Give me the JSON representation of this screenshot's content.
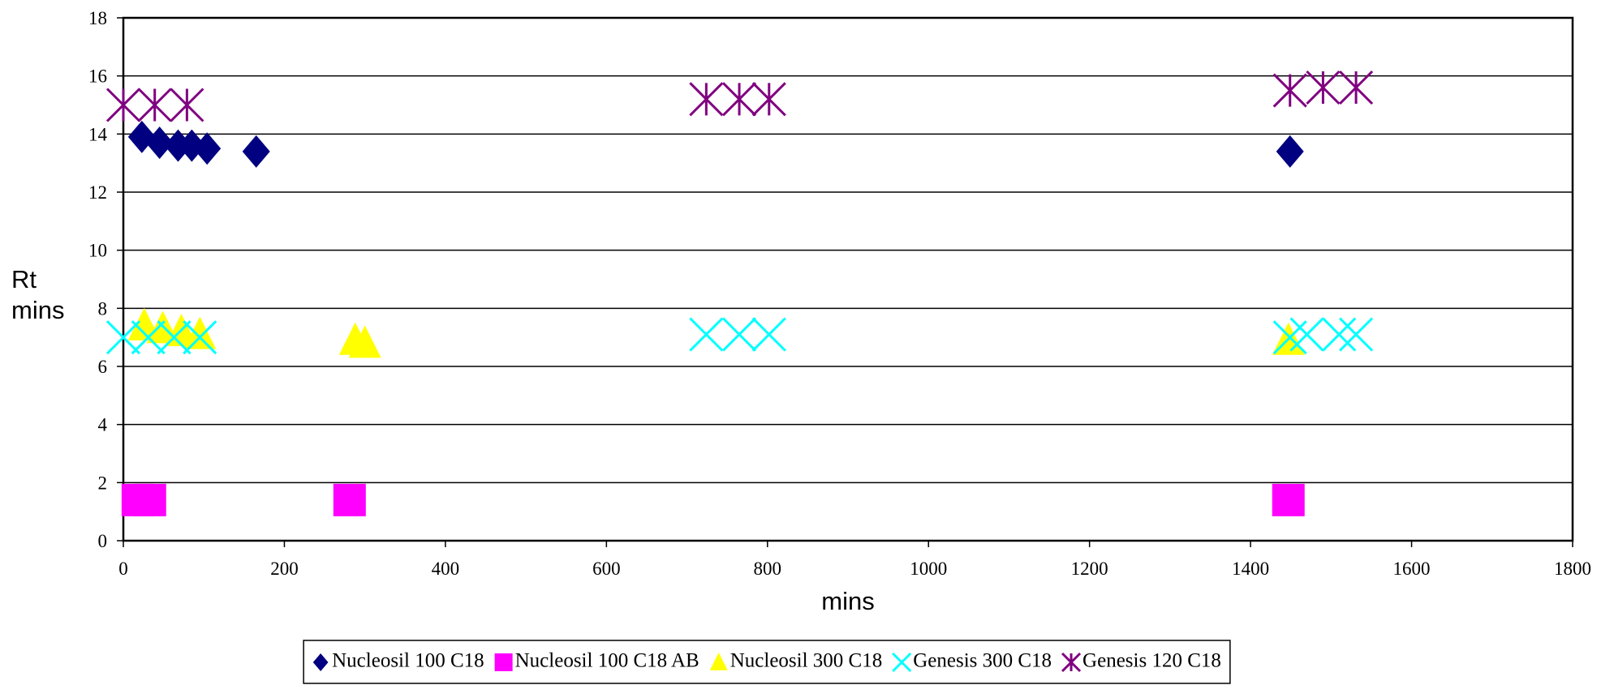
{
  "chart_data": {
    "type": "scatter",
    "xlabel": "mins",
    "ylabel_lines": [
      "Rt",
      "mins"
    ],
    "xlim": [
      0,
      1800
    ],
    "xticks": [
      0,
      200,
      400,
      600,
      800,
      1000,
      1200,
      1400,
      1600,
      1800
    ],
    "ylim": [
      0,
      18
    ],
    "yticks": [
      0,
      2,
      4,
      6,
      8,
      10,
      12,
      14,
      16,
      18
    ],
    "grid": true,
    "legend": "bottom",
    "series": [
      {
        "name": "Nucleosil 100 C18",
        "color": "#000080",
        "marker": "diamond",
        "x": [
          23,
          45,
          68,
          85,
          104,
          165,
          1449
        ],
        "values": [
          13.9,
          13.7,
          13.6,
          13.6,
          13.5,
          13.4,
          13.4
        ]
      },
      {
        "name": "Nucleosil 100 C18 AB",
        "color": "#ff00ff",
        "marker": "square",
        "x": [
          18,
          33,
          281,
          1447
        ],
        "values": [
          1.4,
          1.4,
          1.4,
          1.4
        ]
      },
      {
        "name": "Nucleosil 300 C18",
        "color": "#ffff00",
        "marker": "triangle",
        "x": [
          26,
          49,
          72,
          95,
          288,
          300,
          1447
        ],
        "values": [
          7.4,
          7.3,
          7.2,
          7.1,
          6.9,
          6.8,
          6.9
        ]
      },
      {
        "name": "Genesis 300 C18",
        "color": "#00ffff",
        "marker": "x",
        "x": [
          0,
          31,
          63,
          95,
          724,
          765,
          802,
          1449,
          1470,
          1510,
          1531
        ],
        "values": [
          7.0,
          7.0,
          7.0,
          7.0,
          7.1,
          7.1,
          7.1,
          7.0,
          7.1,
          7.1,
          7.1
        ]
      },
      {
        "name": "Genesis 120 C18",
        "color": "#800080",
        "marker": "star",
        "x": [
          0,
          39,
          79,
          724,
          765,
          802,
          1449,
          1490,
          1531
        ],
        "values": [
          15.0,
          15.0,
          15.0,
          15.2,
          15.2,
          15.2,
          15.5,
          15.6,
          15.6
        ]
      }
    ]
  }
}
